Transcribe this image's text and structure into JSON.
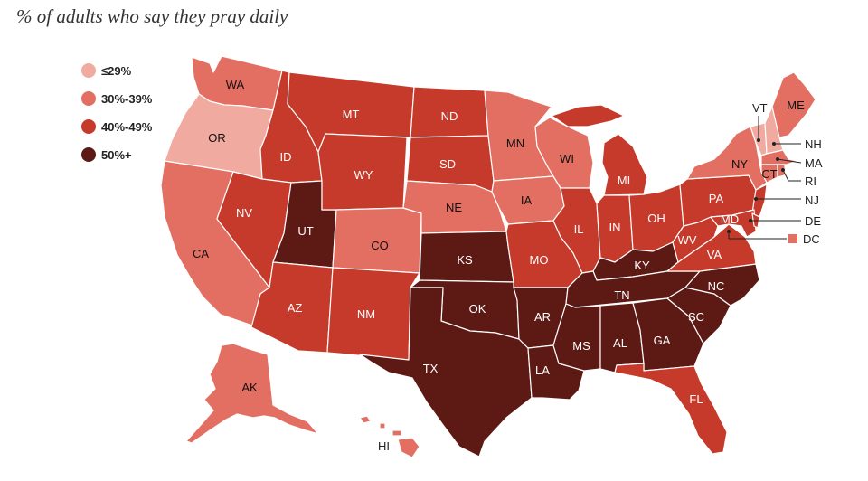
{
  "title": "% of adults who say they pray daily",
  "colors": {
    "le29": "#f0aaa0",
    "c30": "#e36f63",
    "c40": "#c63a2b",
    "c50": "#5d1a15"
  },
  "legend": [
    {
      "label": "≤29%",
      "color": "#f0aaa0"
    },
    {
      "label": "30%-39%",
      "color": "#e36f63"
    },
    {
      "label": "40%-49%",
      "color": "#c63a2b"
    },
    {
      "label": "50%+",
      "color": "#5d1a15"
    }
  ],
  "states": [
    {
      "abbr": "WA",
      "bin": "30%-39%"
    },
    {
      "abbr": "OR",
      "bin": "≤29%"
    },
    {
      "abbr": "CA",
      "bin": "30%-39%"
    },
    {
      "abbr": "ID",
      "bin": "40%-49%"
    },
    {
      "abbr": "NV",
      "bin": "40%-49%"
    },
    {
      "abbr": "UT",
      "bin": "50%+"
    },
    {
      "abbr": "AZ",
      "bin": "40%-49%"
    },
    {
      "abbr": "MT",
      "bin": "40%-49%"
    },
    {
      "abbr": "WY",
      "bin": "40%-49%"
    },
    {
      "abbr": "CO",
      "bin": "30%-39%"
    },
    {
      "abbr": "NM",
      "bin": "40%-49%"
    },
    {
      "abbr": "ND",
      "bin": "40%-49%"
    },
    {
      "abbr": "SD",
      "bin": "40%-49%"
    },
    {
      "abbr": "NE",
      "bin": "30%-39%"
    },
    {
      "abbr": "KS",
      "bin": "50%+"
    },
    {
      "abbr": "OK",
      "bin": "50%+"
    },
    {
      "abbr": "TX",
      "bin": "50%+"
    },
    {
      "abbr": "MN",
      "bin": "30%-39%"
    },
    {
      "abbr": "IA",
      "bin": "30%-39%"
    },
    {
      "abbr": "MO",
      "bin": "40%-49%"
    },
    {
      "abbr": "AR",
      "bin": "50%+"
    },
    {
      "abbr": "LA",
      "bin": "50%+"
    },
    {
      "abbr": "WI",
      "bin": "30%-39%"
    },
    {
      "abbr": "IL",
      "bin": "40%-49%"
    },
    {
      "abbr": "MI",
      "bin": "40%-49%"
    },
    {
      "abbr": "IN",
      "bin": "40%-49%"
    },
    {
      "abbr": "OH",
      "bin": "40%-49%"
    },
    {
      "abbr": "KY",
      "bin": "50%+"
    },
    {
      "abbr": "TN",
      "bin": "50%+"
    },
    {
      "abbr": "MS",
      "bin": "50%+"
    },
    {
      "abbr": "AL",
      "bin": "50%+"
    },
    {
      "abbr": "GA",
      "bin": "50%+"
    },
    {
      "abbr": "FL",
      "bin": "40%-49%"
    },
    {
      "abbr": "SC",
      "bin": "50%+"
    },
    {
      "abbr": "NC",
      "bin": "50%+"
    },
    {
      "abbr": "VA",
      "bin": "40%-49%"
    },
    {
      "abbr": "WV",
      "bin": "40%-49%"
    },
    {
      "abbr": "PA",
      "bin": "40%-49%"
    },
    {
      "abbr": "NY",
      "bin": "30%-39%"
    },
    {
      "abbr": "VT",
      "bin": "≤29%"
    },
    {
      "abbr": "NH",
      "bin": "≤29%"
    },
    {
      "abbr": "ME",
      "bin": "30%-39%"
    },
    {
      "abbr": "MA",
      "bin": "30%-39%"
    },
    {
      "abbr": "CT",
      "bin": "30%-39%"
    },
    {
      "abbr": "RI",
      "bin": "30%-39%"
    },
    {
      "abbr": "NJ",
      "bin": "40%-49%"
    },
    {
      "abbr": "DE",
      "bin": "40%-49%"
    },
    {
      "abbr": "MD",
      "bin": "40%-49%"
    },
    {
      "abbr": "DC",
      "bin": "30%-39%"
    },
    {
      "abbr": "AK",
      "bin": "30%-39%"
    },
    {
      "abbr": "HI",
      "bin": "30%-39%"
    }
  ]
}
